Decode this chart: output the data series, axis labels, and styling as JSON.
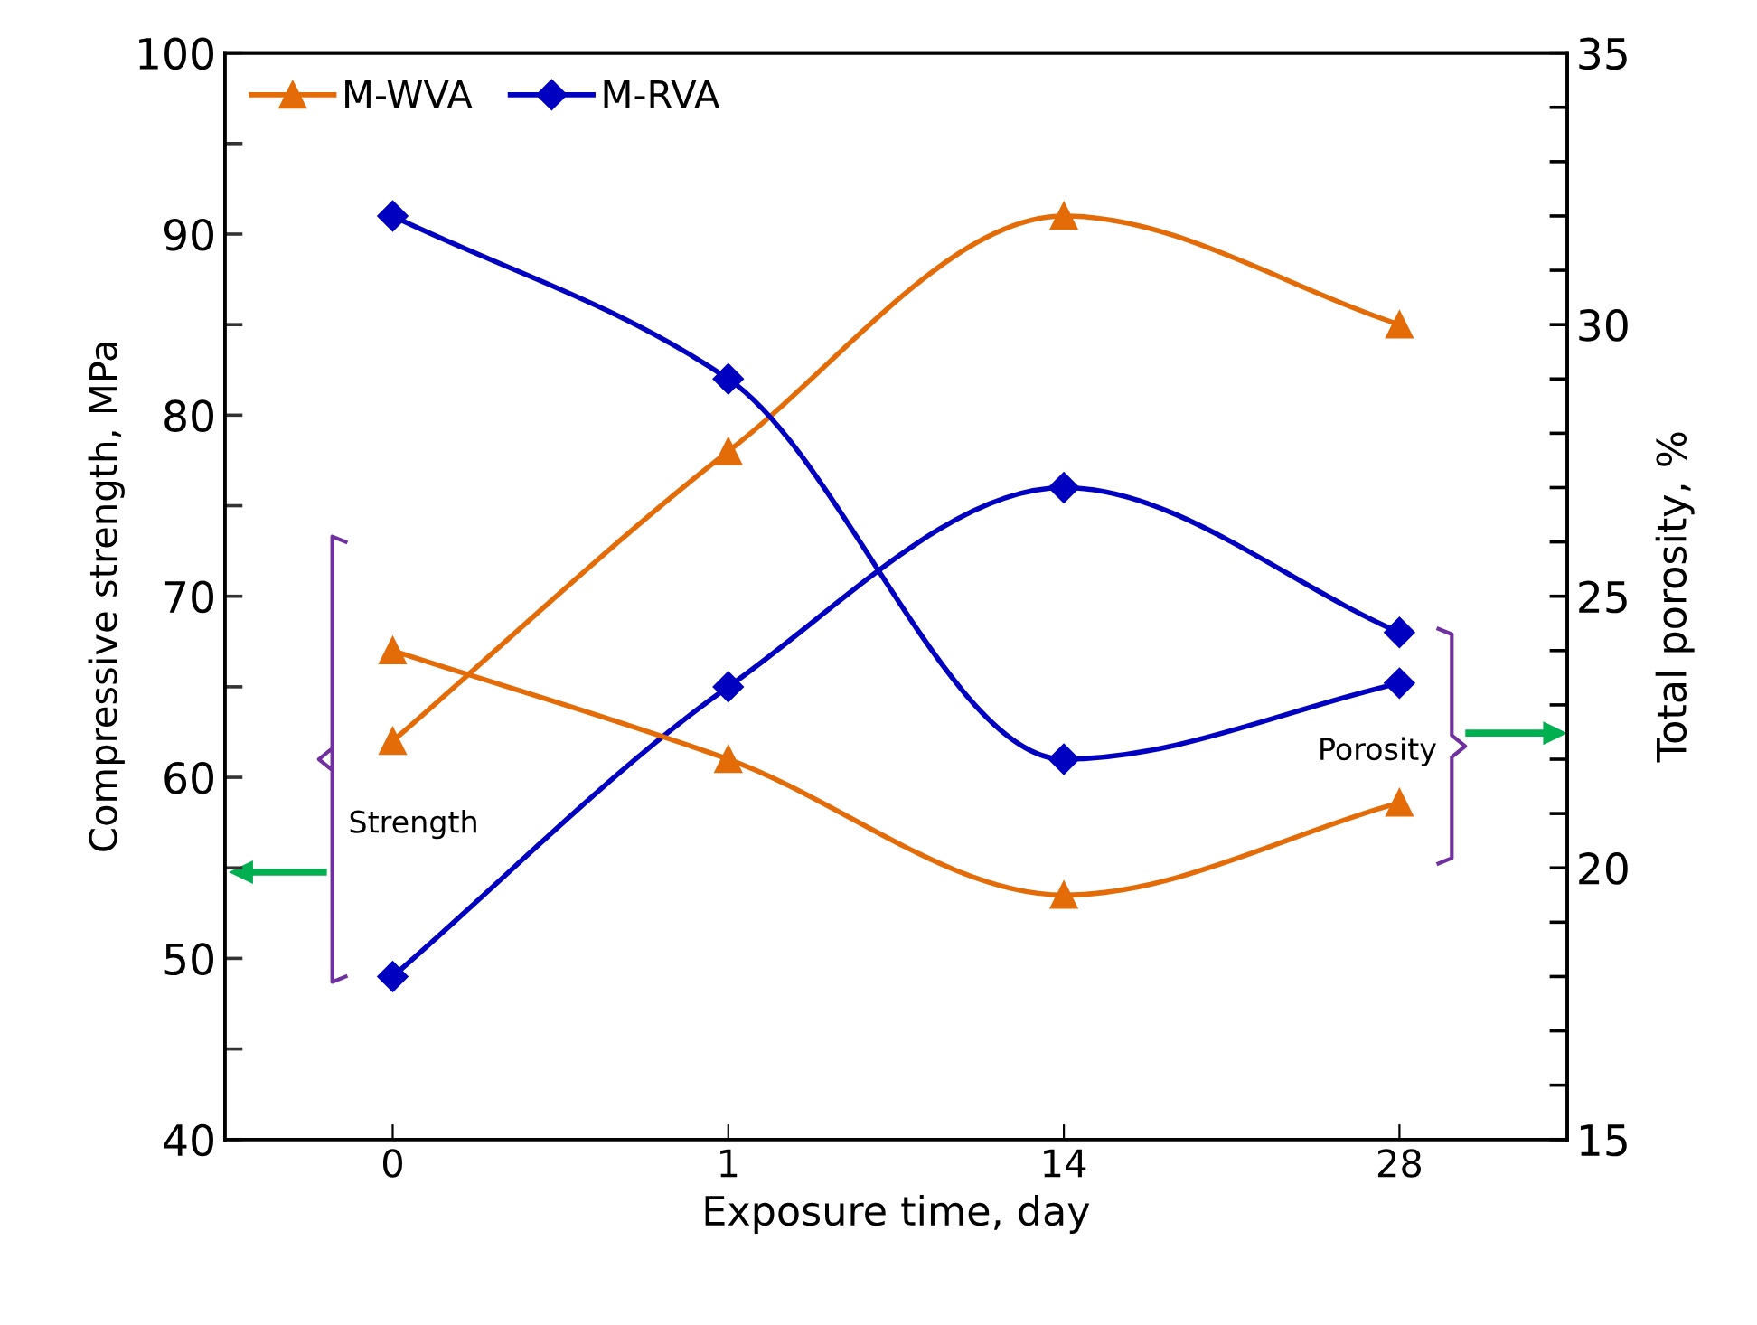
{
  "chart_data": {
    "type": "line",
    "xlabel": "Exposure time, day",
    "ylabel": "Compressive strength, MPa",
    "y2label": "Total porosity, %",
    "categories": [
      "0",
      "1",
      "14",
      "28"
    ],
    "series": [
      {
        "name": "M-WVA",
        "color": "#e36c09",
        "marker": "triangle",
        "values": [
          62,
          78,
          91,
          85
        ]
      },
      {
        "name": "M-RVA",
        "color": "#0000c0",
        "marker": "diamond",
        "values": [
          49,
          65,
          76,
          68
        ]
      },
      {
        "color": "#e36c09",
        "marker": "triangle",
        "axis": "y2",
        "values": [
          24.0,
          22.0,
          19.5,
          21.2
        ]
      },
      {
        "color": "#0000c0",
        "marker": "diamond",
        "axis": "y2",
        "values": [
          32.0,
          29.0,
          22.0,
          23.4
        ]
      }
    ],
    "ylim": [
      40,
      100
    ],
    "yticks": [
      40,
      {
        "value": 45,
        "label": null
      },
      50,
      {
        "value": 55,
        "label": null
      },
      60,
      {
        "value": 65,
        "label": null
      },
      70,
      {
        "value": 75,
        "label": null
      },
      80,
      {
        "value": 85,
        "label": null
      },
      90,
      {
        "value": 95,
        "label": null
      },
      100
    ],
    "y2lim": [
      15,
      35
    ],
    "y2ticks": [
      15,
      {
        "value": 16,
        "label": null
      },
      {
        "value": 17,
        "label": null
      },
      {
        "value": 18,
        "label": null
      },
      {
        "value": 19,
        "label": null
      },
      20,
      {
        "value": 21,
        "label": null
      },
      {
        "value": 22,
        "label": null
      },
      {
        "value": 23,
        "label": null
      },
      {
        "value": 24,
        "label": null
      },
      25,
      {
        "value": 26,
        "label": null
      },
      {
        "value": 27,
        "label": null
      },
      {
        "value": 28,
        "label": null
      },
      {
        "value": 29,
        "label": null
      },
      30,
      {
        "value": 31,
        "label": null
      },
      {
        "value": 32,
        "label": null
      },
      {
        "value": 33,
        "label": null
      },
      {
        "value": 34,
        "label": null
      },
      35
    ],
    "annotations": [
      "Strength",
      "Porosity"
    ],
    "legend": "top left",
    "grid": false
  }
}
